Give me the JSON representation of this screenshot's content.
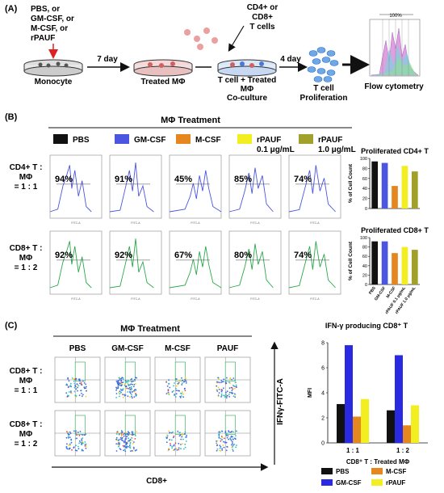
{
  "panels": {
    "a": {
      "label": "(A)",
      "pbs_line1": "PBS, or",
      "pbs_line2": "GM-CSF, or",
      "pbs_line3": "M-CSF, or",
      "pbs_line4": "rPAUF",
      "cd4_line1": "CD4+ or",
      "cd4_line2": "CD8+",
      "cd4_line3": "T cells",
      "day7": "7 day",
      "day4": "4 day",
      "monocyte": "Monocyte",
      "treated": "Treated MΦ",
      "coculture_line1": "T cell + Treated",
      "coculture_line2": "MΦ",
      "coculture_line3": "Co-culture",
      "prolif_line1": "T cell",
      "prolif_line2": "Proliferation",
      "flow": "Flow cytometry",
      "flow_pct": "100%"
    },
    "b": {
      "label": "(B)",
      "title": "MΦ Treatment",
      "legend": [
        {
          "name": "PBS",
          "color": "#111111"
        },
        {
          "name": "GM-CSF",
          "color": "#4a55e0"
        },
        {
          "name": "M-CSF",
          "color": "#e5871e"
        },
        {
          "name": "rPAUF",
          "sub": "0.1 μg/mL",
          "color": "#f2ee20"
        },
        {
          "name": "rPAUF",
          "sub": "1.0 μg/mL",
          "color": "#a0a02a"
        }
      ],
      "row1_line1": "CD4+ T :",
      "row1_line2": "MΦ",
      "row1_line3": "= 1 : 1",
      "row2_line1": "CD8+ T :",
      "row2_line2": "MΦ",
      "row2_line3": "= 1 : 2",
      "row1_pcts": [
        "94%",
        "91%",
        "45%",
        "85%",
        "74%"
      ],
      "row2_pcts": [
        "92%",
        "92%",
        "67%",
        "80%",
        "74%"
      ],
      "axis_label": "FITC-A"
    },
    "c": {
      "label": "(C)",
      "title": "MΦ Treatment",
      "cols": [
        "PBS",
        "GM-CSF",
        "M-CSF",
        "PAUF"
      ],
      "row1_line1": "CD8+ T :",
      "row1_line2": "MΦ",
      "row1_line3": "= 1 : 1",
      "row2_line1": "CD8+ T :",
      "row2_line2": "MΦ",
      "row2_line3": "= 1 : 2",
      "xlabel": "CD8+",
      "ylabel": "IFNγ-FITC-A",
      "legend": [
        {
          "name": "PBS",
          "color": "#111111"
        },
        {
          "name": "M-CSF",
          "color": "#e5871e"
        },
        {
          "name": "GM-CSF",
          "color": "#2a2ae0"
        },
        {
          "name": "rPAUF",
          "color": "#f2ee20"
        }
      ]
    }
  },
  "chart_data": [
    {
      "type": "bar",
      "title": "Proliferated CD4+ T",
      "ylabel": "% of Cell Count",
      "categories": [
        "PBS",
        "GM-CSF",
        "M-CSF",
        "rPAUF 0.1 μg/mL",
        "rPAUF 1.0 μg/mL"
      ],
      "values": [
        94,
        91,
        45,
        85,
        74
      ],
      "colors": [
        "#111111",
        "#4a55e0",
        "#e5871e",
        "#f2ee20",
        "#a0a02a"
      ],
      "ylim": [
        0,
        100
      ],
      "yticks": [
        "0",
        "20",
        "40",
        "60",
        "80",
        "100"
      ]
    },
    {
      "type": "bar",
      "title": "Proliferated CD8+ T",
      "ylabel": "% of Cell Count",
      "categories": [
        "PBS",
        "GM-CSF",
        "M-CSF",
        "rPAUF 0.1 μg/mL",
        "rPAUF 1.0 μg/mL"
      ],
      "values": [
        92,
        92,
        67,
        80,
        74
      ],
      "colors": [
        "#111111",
        "#4a55e0",
        "#e5871e",
        "#f2ee20",
        "#a0a02a"
      ],
      "ylim": [
        0,
        100
      ],
      "yticks": [
        "0",
        "20",
        "40",
        "60",
        "80",
        "100"
      ]
    },
    {
      "type": "bar",
      "title": "IFN-γ producing CD8⁺ T",
      "ylabel": "MFI",
      "xlabel": "CD8⁺ T : Treated MΦ",
      "categories": [
        "1 : 1",
        "1 : 2"
      ],
      "series": [
        {
          "name": "PBS",
          "color": "#111111",
          "values": [
            3.1,
            2.6
          ]
        },
        {
          "name": "GM-CSF",
          "color": "#2a2ae0",
          "values": [
            7.8,
            7.0
          ]
        },
        {
          "name": "M-CSF",
          "color": "#e5871e",
          "values": [
            2.1,
            1.4
          ]
        },
        {
          "name": "rPAUF",
          "color": "#f2ee20",
          "values": [
            3.5,
            3.0
          ]
        }
      ],
      "ylim": [
        0,
        8
      ],
      "yticks": [
        "0",
        "2",
        "4",
        "6",
        "8"
      ]
    }
  ]
}
